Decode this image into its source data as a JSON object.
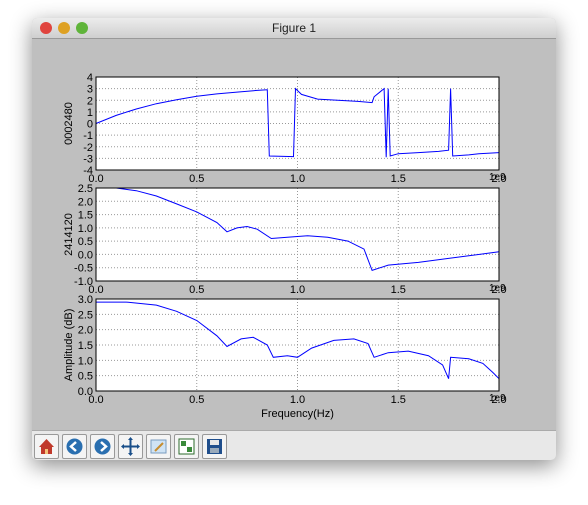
{
  "window": {
    "title": "Figure 1"
  },
  "chart_data": [
    {
      "type": "line",
      "ylabel": "0002480",
      "color": "#0000ff",
      "grid": true,
      "xlim": [
        0,
        2
      ],
      "xticks": [
        {
          "value": 0,
          "label": "0.0"
        },
        0.5,
        {
          "value": 1,
          "label": "1.0"
        },
        1.5,
        {
          "value": 2,
          "label": "2.0"
        }
      ],
      "x_offset_text": "1e9",
      "ylim": [
        -4,
        4
      ],
      "yticks": [
        4,
        3,
        2,
        1,
        0,
        -1,
        -2,
        -3,
        -4
      ],
      "x": [
        0,
        0.1,
        0.2,
        0.3,
        0.4,
        0.5,
        0.6,
        0.7,
        0.8,
        0.85,
        0.86,
        0.98,
        0.99,
        1.02,
        1.1,
        1.2,
        1.3,
        1.37,
        1.38,
        1.43,
        1.44,
        1.45,
        1.46,
        1.5,
        1.6,
        1.7,
        1.75,
        1.76,
        1.77,
        1.85,
        1.9,
        2.0
      ],
      "values": [
        0,
        0.7,
        1.25,
        1.7,
        2.05,
        2.35,
        2.55,
        2.7,
        2.85,
        2.9,
        -2.8,
        -2.85,
        3.0,
        2.5,
        2.1,
        2.0,
        1.9,
        1.8,
        2.3,
        3.0,
        -2.9,
        3.0,
        -2.8,
        -2.6,
        -2.5,
        -2.4,
        -2.3,
        3.0,
        -2.8,
        -2.7,
        -2.6,
        -2.5
      ]
    },
    {
      "type": "line",
      "ylabel": "2414120",
      "color": "#0000ff",
      "grid": true,
      "xlim": [
        0,
        2
      ],
      "xticks": [
        {
          "value": 0,
          "label": "0.0"
        },
        0.5,
        {
          "value": 1,
          "label": "1.0"
        },
        1.5,
        {
          "value": 2,
          "label": "2.0"
        }
      ],
      "x_offset_text": "1e9",
      "ylim": [
        -1,
        2.5
      ],
      "yticks": [
        2.5,
        {
          "value": 2,
          "label": "2.0"
        },
        1.5,
        {
          "value": 1,
          "label": "1.0"
        },
        0.5,
        {
          "value": 0,
          "label": "0.0"
        },
        -0.5,
        {
          "value": -1,
          "label": "-1.0"
        }
      ],
      "x": [
        0,
        0.1,
        0.2,
        0.3,
        0.4,
        0.5,
        0.6,
        0.65,
        0.7,
        0.75,
        0.8,
        0.87,
        0.95,
        1.05,
        1.15,
        1.25,
        1.33,
        1.37,
        1.45,
        1.6,
        1.75,
        1.85,
        2.0
      ],
      "values": [
        2.5,
        2.5,
        2.4,
        2.2,
        1.9,
        1.6,
        1.2,
        0.85,
        1.0,
        1.05,
        0.95,
        0.6,
        0.65,
        0.7,
        0.65,
        0.5,
        0.2,
        -0.6,
        -0.4,
        -0.3,
        -0.15,
        -0.05,
        0.1
      ]
    },
    {
      "type": "line",
      "ylabel": "Amplitude (dB)",
      "xlabel": "Frequency(Hz)",
      "color": "#0000ff",
      "grid": true,
      "xlim": [
        0,
        2
      ],
      "xticks": [
        {
          "value": 0,
          "label": "0.0"
        },
        0.5,
        {
          "value": 1,
          "label": "1.0"
        },
        1.5,
        {
          "value": 2,
          "label": "2.0"
        }
      ],
      "x_offset_text": "1e9",
      "ylim": [
        0,
        3
      ],
      "yticks": [
        {
          "value": 3,
          "label": "3.0"
        },
        2.5,
        {
          "value": 2,
          "label": "2.0"
        },
        1.5,
        {
          "value": 1,
          "label": "1.0"
        },
        0.5,
        {
          "value": 0,
          "label": "0.0"
        }
      ],
      "x": [
        0,
        0.15,
        0.3,
        0.4,
        0.5,
        0.6,
        0.65,
        0.72,
        0.78,
        0.85,
        0.88,
        0.95,
        1.0,
        1.07,
        1.18,
        1.28,
        1.35,
        1.38,
        1.45,
        1.55,
        1.65,
        1.72,
        1.75,
        1.76,
        1.85,
        1.92,
        1.97,
        2.0
      ],
      "values": [
        2.9,
        2.9,
        2.8,
        2.6,
        2.3,
        1.8,
        1.45,
        1.7,
        1.75,
        1.5,
        1.1,
        1.15,
        1.1,
        1.4,
        1.65,
        1.7,
        1.55,
        1.1,
        1.25,
        1.3,
        1.15,
        0.85,
        0.4,
        1.1,
        1.05,
        0.9,
        0.6,
        0.4
      ]
    }
  ]
}
